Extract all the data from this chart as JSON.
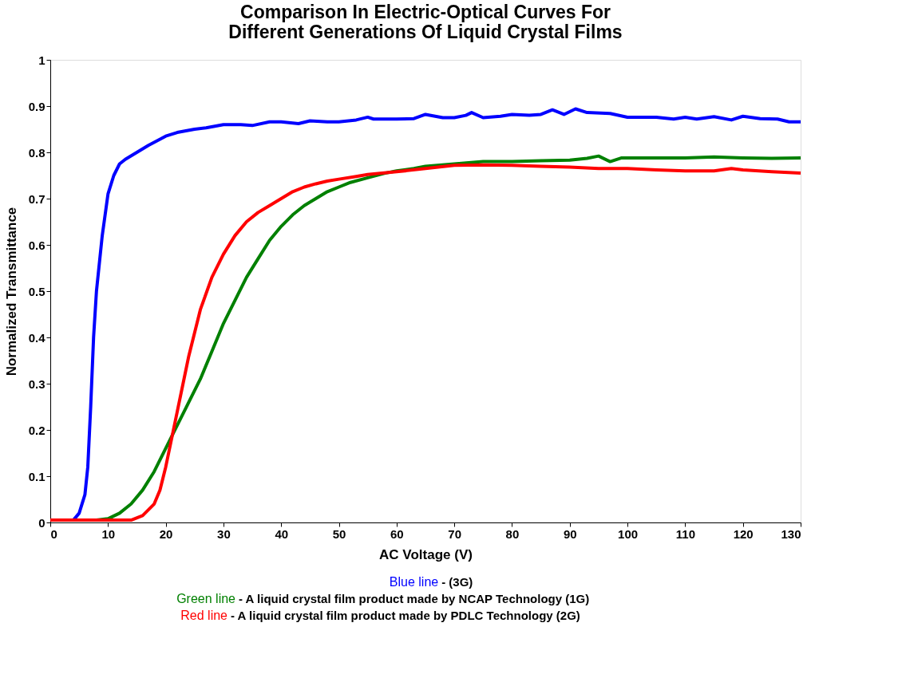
{
  "chart_data": {
    "type": "line",
    "title": [
      "Comparison In Electric-Optical Curves For",
      "Different Generations Of Liquid Crystal Films"
    ],
    "xlabel": "AC Voltage (V)",
    "ylabel": "Normalized Transmittance",
    "xlim": [
      0,
      130
    ],
    "xticks": [
      0,
      10,
      20,
      30,
      40,
      50,
      60,
      70,
      80,
      90,
      100,
      110,
      120,
      130
    ],
    "ylim": [
      0,
      1
    ],
    "yticks": [
      0,
      0.1,
      0.2,
      0.3,
      0.4,
      0.5,
      0.6,
      0.7,
      0.8,
      0.9,
      1
    ],
    "grid": false,
    "legend": "bottom",
    "marker": "none",
    "line_style": "solid",
    "series": [
      {
        "name": "Blue line",
        "color": "#0000ff",
        "x": [
          0,
          3,
          4,
          5,
          6,
          6.5,
          7,
          7.5,
          8,
          9,
          10,
          11,
          12,
          13,
          15,
          17,
          20,
          22,
          25,
          27,
          30,
          33,
          35,
          38,
          40,
          43,
          45,
          48,
          50,
          53,
          55,
          56,
          60,
          63,
          65,
          68,
          70,
          72,
          73,
          75,
          78,
          80,
          83,
          85,
          87,
          89,
          91,
          93,
          97,
          100,
          105,
          108,
          110,
          112,
          115,
          118,
          120,
          123,
          126,
          128,
          130
        ],
        "values": [
          0.005,
          0.005,
          0.005,
          0.02,
          0.06,
          0.12,
          0.25,
          0.4,
          0.5,
          0.62,
          0.71,
          0.75,
          0.775,
          0.785,
          0.8,
          0.815,
          0.835,
          0.843,
          0.85,
          0.853,
          0.86,
          0.86,
          0.858,
          0.866,
          0.866,
          0.862,
          0.868,
          0.866,
          0.866,
          0.87,
          0.876,
          0.872,
          0.872,
          0.873,
          0.882,
          0.875,
          0.875,
          0.88,
          0.886,
          0.875,
          0.878,
          0.882,
          0.88,
          0.882,
          0.892,
          0.882,
          0.894,
          0.886,
          0.884,
          0.876,
          0.876,
          0.872,
          0.876,
          0.872,
          0.877,
          0.87,
          0.878,
          0.873,
          0.872,
          0.866,
          0.866
        ]
      },
      {
        "name": "Green line",
        "color": "#008000",
        "x": [
          0,
          5,
          8,
          10,
          12,
          14,
          16,
          18,
          20,
          22,
          24,
          26,
          28,
          30,
          32,
          34,
          36,
          38,
          40,
          42,
          44,
          46,
          48,
          50,
          52,
          55,
          58,
          60,
          63,
          65,
          70,
          75,
          80,
          85,
          90,
          93,
          95,
          97,
          99,
          105,
          110,
          115,
          120,
          125,
          130
        ],
        "values": [
          0.005,
          0.005,
          0.005,
          0.008,
          0.02,
          0.04,
          0.07,
          0.11,
          0.16,
          0.21,
          0.26,
          0.31,
          0.37,
          0.43,
          0.48,
          0.53,
          0.57,
          0.61,
          0.64,
          0.665,
          0.685,
          0.7,
          0.715,
          0.725,
          0.735,
          0.745,
          0.755,
          0.76,
          0.765,
          0.77,
          0.775,
          0.78,
          0.78,
          0.782,
          0.783,
          0.787,
          0.792,
          0.78,
          0.788,
          0.788,
          0.788,
          0.79,
          0.788,
          0.787,
          0.788
        ]
      },
      {
        "name": "Red line",
        "color": "#ff0000",
        "x": [
          0,
          10,
          14,
          16,
          18,
          19,
          20,
          21,
          22,
          23,
          24,
          25,
          26,
          28,
          30,
          32,
          34,
          36,
          38,
          40,
          42,
          44,
          46,
          48,
          50,
          53,
          55,
          60,
          65,
          70,
          75,
          80,
          85,
          90,
          95,
          100,
          105,
          110,
          115,
          118,
          120,
          125,
          130
        ],
        "values": [
          0.005,
          0.005,
          0.005,
          0.015,
          0.04,
          0.07,
          0.12,
          0.18,
          0.24,
          0.3,
          0.36,
          0.41,
          0.46,
          0.53,
          0.58,
          0.62,
          0.65,
          0.67,
          0.685,
          0.7,
          0.715,
          0.725,
          0.732,
          0.738,
          0.742,
          0.748,
          0.752,
          0.758,
          0.765,
          0.772,
          0.773,
          0.772,
          0.77,
          0.768,
          0.765,
          0.765,
          0.762,
          0.76,
          0.76,
          0.765,
          0.762,
          0.758,
          0.755
        ]
      }
    ],
    "annotations": [
      "- (3G)",
      "- A liquid crystal film product made by NCAP Technology (1G)",
      "- A liquid crystal film product made by PDLC Technology (2G)"
    ]
  }
}
